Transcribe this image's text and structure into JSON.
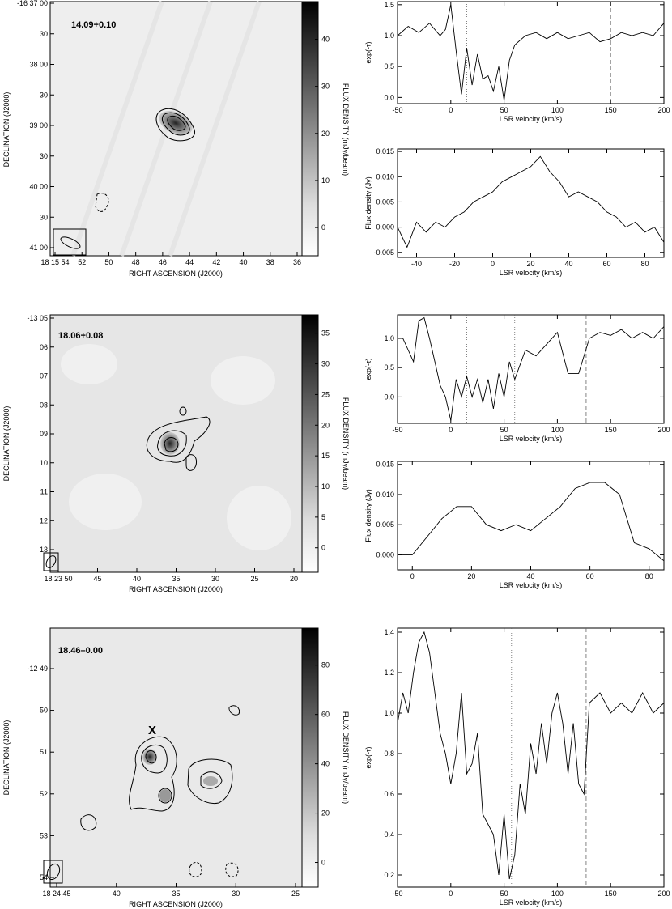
{
  "maps": [
    {
      "label": "14.09+0.10",
      "xlabel": "RIGHT ASCENSION (J2000)",
      "ylabel": "DECLINATION (J2000)",
      "cbar_label": "FLUX DENSITY (mJy/beam)",
      "xticks": [
        "18 15 54",
        "52",
        "50",
        "48",
        "46",
        "44",
        "42",
        "40",
        "38",
        "36"
      ],
      "yticks": [
        "-16 37 00",
        "30",
        "38 00",
        "30",
        "39 00",
        "30",
        "40 00",
        "30",
        "41 00"
      ],
      "cbar_ticks": [
        "40",
        "30",
        "20",
        "10",
        "0"
      ],
      "cbar_range": [
        -6,
        48
      ],
      "marker": ""
    },
    {
      "label": "18.06+0.08",
      "xlabel": "RIGHT ASCENSION (J2000)",
      "ylabel": "DECLINATION (J2000)",
      "cbar_label": "FLUX DENSITY (mJy/beam)",
      "xticks": [
        "18 23 50",
        "45",
        "40",
        "35",
        "30",
        "25",
        "20"
      ],
      "yticks": [
        "-13 05",
        "06",
        "07",
        "08",
        "09",
        "10",
        "11",
        "12",
        "13"
      ],
      "cbar_ticks": [
        "35",
        "30",
        "25",
        "20",
        "15",
        "10",
        "5",
        "0"
      ],
      "cbar_range": [
        -4,
        38
      ],
      "marker": ""
    },
    {
      "label": "18.46–0.00",
      "xlabel": "RIGHT ASCENSION (J2000)",
      "ylabel": "DECLINATION (J2000)",
      "cbar_label": "FLUX DENSITY (mJy/beam)",
      "xticks": [
        "18 24 45",
        "40",
        "35",
        "30",
        "25"
      ],
      "yticks": [
        "-12 49",
        "50",
        "51",
        "52",
        "53",
        "54"
      ],
      "cbar_ticks": [
        "80",
        "60",
        "40",
        "20",
        "0"
      ],
      "cbar_range": [
        -10,
        95
      ],
      "marker": "X"
    }
  ],
  "chart_data": [
    {
      "type": "line",
      "panel": "14.09+0.10 absorption",
      "xlabel": "LSR velocity (km/s)",
      "ylabel": "exp(-τ)",
      "xlim": [
        -50,
        200
      ],
      "ylim": [
        -0.1,
        1.55
      ],
      "xticks": [
        "-50",
        "0",
        "50",
        "100",
        "150",
        "200"
      ],
      "yticks": [
        "0.0",
        "0.5",
        "1.0",
        "1.5"
      ],
      "vlines": [
        {
          "x": 15,
          "style": "dotted"
        },
        {
          "x": 150,
          "style": "dashed"
        }
      ],
      "x": [
        -50,
        -40,
        -30,
        -20,
        -10,
        -5,
        0,
        5,
        10,
        15,
        20,
        25,
        30,
        35,
        40,
        45,
        50,
        55,
        60,
        70,
        80,
        90,
        100,
        110,
        120,
        130,
        140,
        150,
        160,
        170,
        180,
        190,
        200
      ],
      "values": [
        1.0,
        1.15,
        1.05,
        1.2,
        1.0,
        1.1,
        1.5,
        0.75,
        0.05,
        0.8,
        0.2,
        0.7,
        0.3,
        0.35,
        0.1,
        0.5,
        -0.05,
        0.6,
        0.85,
        1.0,
        1.05,
        0.95,
        1.05,
        0.95,
        1.0,
        1.05,
        0.9,
        0.95,
        1.05,
        1.0,
        1.05,
        1.0,
        1.2
      ]
    },
    {
      "type": "line",
      "panel": "14.09+0.10 emission",
      "xlabel": "LSR velocity (km/s)",
      "ylabel": "Flux density (Jy)",
      "xlim": [
        -50,
        90
      ],
      "ylim": [
        -0.006,
        0.0155
      ],
      "xticks": [
        "-40",
        "-20",
        "0",
        "20",
        "40",
        "60",
        "80"
      ],
      "yticks": [
        "-0.005",
        "0.000",
        "0.005",
        "0.010",
        "0.015"
      ],
      "vlines": [],
      "x": [
        -50,
        -45,
        -40,
        -35,
        -30,
        -25,
        -20,
        -15,
        -10,
        -5,
        0,
        5,
        10,
        15,
        20,
        25,
        30,
        35,
        40,
        45,
        50,
        55,
        60,
        65,
        70,
        75,
        80,
        85,
        90
      ],
      "values": [
        0.0,
        -0.004,
        0.001,
        -0.001,
        0.001,
        0.0,
        0.002,
        0.003,
        0.005,
        0.006,
        0.007,
        0.009,
        0.01,
        0.011,
        0.012,
        0.014,
        0.011,
        0.009,
        0.006,
        0.007,
        0.006,
        0.005,
        0.003,
        0.002,
        0.0,
        0.001,
        -0.001,
        0.0,
        -0.003
      ]
    },
    {
      "type": "line",
      "panel": "18.06+0.08 absorption",
      "xlabel": "LSR velocity (km/s)",
      "ylabel": "exp(-τ)",
      "xlim": [
        -50,
        200
      ],
      "ylim": [
        -0.45,
        1.4
      ],
      "xticks": [
        "-50",
        "0",
        "50",
        "100",
        "150",
        "200"
      ],
      "yticks": [
        "0.0",
        "0.5",
        "1.0"
      ],
      "vlines": [
        {
          "x": 15,
          "style": "dotted"
        },
        {
          "x": 60,
          "style": "dotted"
        },
        {
          "x": 127,
          "style": "dashed"
        }
      ],
      "x": [
        -50,
        -45,
        -40,
        -35,
        -30,
        -25,
        -20,
        -15,
        -10,
        -5,
        0,
        5,
        10,
        15,
        20,
        25,
        30,
        35,
        40,
        45,
        50,
        55,
        60,
        70,
        80,
        90,
        100,
        110,
        120,
        130,
        140,
        150,
        160,
        170,
        180,
        190,
        200
      ],
      "values": [
        1.0,
        1.0,
        0.8,
        0.6,
        1.3,
        1.35,
        1.0,
        0.6,
        0.2,
        0.0,
        -0.4,
        0.3,
        0.0,
        0.35,
        0.0,
        0.3,
        -0.1,
        0.3,
        -0.2,
        0.4,
        0.0,
        0.6,
        0.3,
        0.8,
        0.7,
        0.9,
        1.1,
        0.4,
        0.4,
        1.0,
        1.1,
        1.05,
        1.15,
        1.0,
        1.1,
        1.0,
        1.2
      ]
    },
    {
      "type": "line",
      "panel": "18.06+0.08 emission",
      "xlabel": "LSR velocity (km/s)",
      "ylabel": "Flux density (Jy)",
      "xlim": [
        -5,
        85
      ],
      "ylim": [
        -0.0025,
        0.0155
      ],
      "xticks": [
        "0",
        "20",
        "40",
        "60",
        "80"
      ],
      "yticks": [
        "0.000",
        "0.005",
        "0.010",
        "0.015"
      ],
      "vlines": [],
      "x": [
        -5,
        0,
        5,
        10,
        15,
        20,
        25,
        30,
        35,
        40,
        45,
        50,
        55,
        60,
        65,
        70,
        75,
        80,
        85
      ],
      "values": [
        0.0,
        0.0,
        0.003,
        0.006,
        0.008,
        0.008,
        0.005,
        0.004,
        0.005,
        0.004,
        0.006,
        0.008,
        0.011,
        0.012,
        0.012,
        0.01,
        0.002,
        0.001,
        -0.001
      ]
    },
    {
      "type": "line",
      "panel": "18.46-0.00 absorption",
      "xlabel": "LSR velocity (km/s)",
      "ylabel": "exp(-τ)",
      "xlim": [
        -50,
        200
      ],
      "ylim": [
        0.14,
        1.42
      ],
      "xticks": [
        "-50",
        "0",
        "50",
        "100",
        "150",
        "200"
      ],
      "yticks": [
        "0.2",
        "0.4",
        "0.6",
        "0.8",
        "1.0",
        "1.2",
        "1.4"
      ],
      "vlines": [
        {
          "x": 57,
          "style": "dotted"
        },
        {
          "x": 127,
          "style": "dashed"
        }
      ],
      "x": [
        -50,
        -45,
        -40,
        -35,
        -30,
        -25,
        -20,
        -15,
        -10,
        -5,
        0,
        5,
        10,
        15,
        20,
        25,
        30,
        35,
        40,
        45,
        50,
        55,
        60,
        65,
        70,
        75,
        80,
        85,
        90,
        95,
        100,
        105,
        110,
        115,
        120,
        125,
        130,
        140,
        150,
        160,
        170,
        180,
        190,
        200
      ],
      "values": [
        0.95,
        1.1,
        1.0,
        1.2,
        1.35,
        1.4,
        1.3,
        1.1,
        0.9,
        0.8,
        0.65,
        0.8,
        1.1,
        0.7,
        0.75,
        0.9,
        0.5,
        0.45,
        0.4,
        0.2,
        0.5,
        0.18,
        0.3,
        0.65,
        0.5,
        0.85,
        0.7,
        0.95,
        0.75,
        1.0,
        1.1,
        0.95,
        0.7,
        0.95,
        0.65,
        0.6,
        1.05,
        1.1,
        1.0,
        1.05,
        1.0,
        1.1,
        1.0,
        1.05
      ]
    }
  ]
}
